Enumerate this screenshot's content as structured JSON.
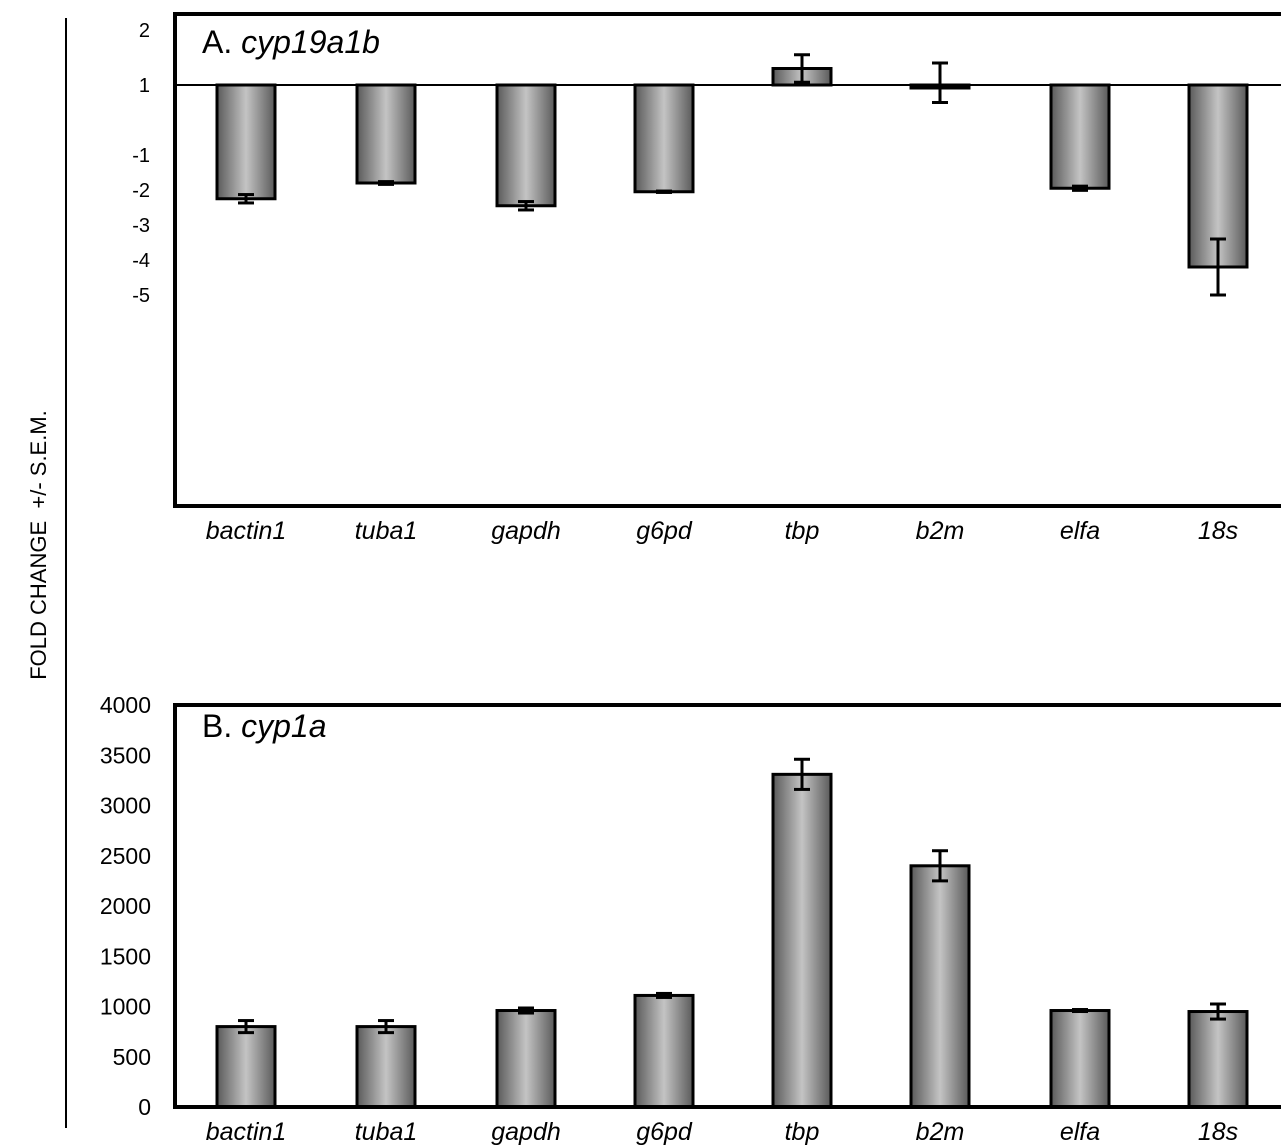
{
  "y_axis_label": "FOLD CHANGE  +/- S.E.M.",
  "colors": {
    "bar_center": "#c4c4c4",
    "bar_edge": "#5a5a5a",
    "axis": "#000000"
  },
  "chart_data": [
    {
      "type": "bar",
      "panel_label": "A.",
      "gene": "cyp19a1b",
      "categories": [
        "bactin1",
        "tuba1",
        "gapdh",
        "g6pd",
        "tbp",
        "b2m",
        "elfa",
        "18s"
      ],
      "values": [
        -2.25,
        -1.8,
        -2.45,
        -2.05,
        1.3,
        0.95,
        -1.95,
        -4.2
      ],
      "errors": [
        0.12,
        0.04,
        0.12,
        0.02,
        0.25,
        0.45,
        0.06,
        0.8
      ],
      "yticks": [
        2,
        1,
        -1,
        -2,
        -3,
        -4,
        -5
      ],
      "baseline": 1,
      "ylim": [
        -6,
        2
      ],
      "note": "tick labels skip 0: 1 is followed directly by -1 (fold-change scale)"
    },
    {
      "type": "bar",
      "panel_label": "B.",
      "gene": "cyp1a",
      "categories": [
        "bactin1",
        "tuba1",
        "gapdh",
        "g6pd",
        "tbp",
        "b2m",
        "elfa",
        "18s"
      ],
      "values": [
        800,
        800,
        960,
        1110,
        3310,
        2400,
        960,
        950
      ],
      "errors": [
        60,
        60,
        25,
        20,
        150,
        150,
        10,
        75
      ],
      "yticks": [
        4000,
        3500,
        3000,
        2500,
        2000,
        1500,
        1000,
        500,
        0
      ],
      "ylim": [
        0,
        4000
      ]
    }
  ]
}
